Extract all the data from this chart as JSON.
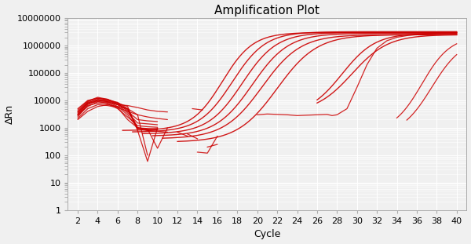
{
  "title": "Amplification Plot",
  "xlabel": "Cycle",
  "ylabel": "ΔRn",
  "xlim": [
    1,
    41
  ],
  "ylim": [
    1,
    10000000
  ],
  "xticks": [
    2,
    4,
    6,
    8,
    10,
    12,
    14,
    16,
    18,
    20,
    22,
    24,
    26,
    28,
    30,
    32,
    34,
    36,
    38,
    40
  ],
  "line_color": "#cc0000",
  "bg_color": "#f0f0f0",
  "grid_color": "#ffffff",
  "title_fontsize": 11,
  "axis_label_fontsize": 9,
  "tick_fontsize": 8
}
